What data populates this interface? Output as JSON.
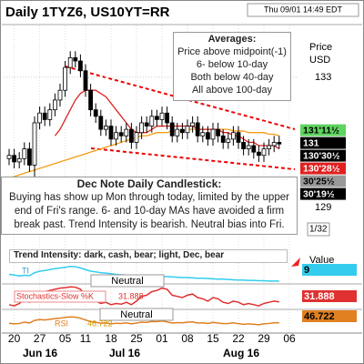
{
  "chart_data": {
    "type": "candlestick",
    "title": "Daily 1TYZ6, US10YT=RR",
    "timestamp": "Thu 09/01 14:49 EDT",
    "y_label": "Price",
    "y_unit": "USD",
    "categories": [
      null,
      "20",
      null,
      null,
      null,
      null,
      "27",
      null,
      null,
      null,
      null,
      "05",
      null,
      null,
      null,
      "11",
      null,
      null,
      null,
      null,
      "18",
      null,
      null,
      null,
      null,
      "25",
      null,
      null,
      null,
      null,
      "01",
      null,
      null,
      null,
      null,
      "08",
      null,
      null,
      null,
      null,
      "15",
      null,
      null,
      null,
      null,
      "22",
      null,
      null,
      null,
      null,
      "29",
      null,
      null,
      null,
      null,
      "06"
    ],
    "months": [
      "Jun 16",
      "Jul 16",
      "Aug 16"
    ],
    "open": [
      130.5,
      130.6,
      130.4,
      130.5,
      130.8,
      130.3,
      131.6,
      131.9,
      131.7,
      132.0,
      132.3,
      132.6,
      133.3,
      133.6,
      133.5,
      133.2,
      132.6,
      132.0,
      131.8,
      131.4,
      131.5,
      131.1,
      131.3,
      131.2,
      131.4,
      131.0,
      131.3,
      131.6,
      131.5,
      131.8,
      131.7,
      131.9,
      131.6,
      131.2,
      131.4,
      131.3,
      131.5,
      131.6,
      131.2,
      131.3,
      131.1,
      131.4,
      131.2,
      131.0,
      131.1,
      131.3,
      131.0,
      130.8,
      130.9,
      130.7,
      130.6,
      130.8,
      130.9,
      131.0,
      null,
      null
    ],
    "high": [
      130.8,
      130.8,
      130.7,
      131.0,
      131.0,
      131.8,
      132.1,
      132.1,
      132.2,
      132.5,
      132.8,
      133.5,
      133.8,
      133.8,
      133.7,
      133.4,
      132.8,
      132.2,
      132.0,
      131.7,
      131.7,
      131.5,
      131.5,
      131.6,
      131.6,
      131.5,
      131.8,
      131.8,
      132.0,
      132.0,
      132.1,
      132.1,
      131.8,
      131.6,
      131.6,
      131.7,
      131.8,
      131.8,
      131.5,
      131.5,
      131.6,
      131.6,
      131.4,
      131.3,
      131.5,
      131.5,
      131.2,
      131.1,
      131.1,
      130.9,
      131.0,
      131.1,
      131.2,
      131.2,
      null,
      null
    ],
    "low": [
      130.3,
      130.2,
      130.2,
      130.3,
      130.1,
      129.8,
      131.4,
      131.5,
      131.5,
      131.8,
      132.1,
      132.4,
      133.1,
      133.3,
      133.0,
      132.4,
      131.8,
      131.6,
      131.2,
      131.2,
      130.9,
      130.9,
      131.0,
      131.0,
      130.8,
      130.8,
      131.1,
      131.3,
      131.3,
      131.5,
      131.5,
      131.4,
      131.0,
      131.0,
      131.1,
      131.1,
      131.3,
      131.0,
      131.0,
      130.9,
      130.9,
      131.0,
      130.8,
      130.8,
      130.9,
      130.8,
      130.6,
      130.6,
      130.5,
      130.4,
      130.4,
      130.6,
      130.7,
      130.8,
      null,
      null
    ],
    "close": [
      130.6,
      130.4,
      130.5,
      130.8,
      130.3,
      131.6,
      131.9,
      131.7,
      132.0,
      132.3,
      132.6,
      133.3,
      133.6,
      133.5,
      133.2,
      132.6,
      132.0,
      131.8,
      131.4,
      131.5,
      131.1,
      131.3,
      131.2,
      131.4,
      131.0,
      131.3,
      131.6,
      131.5,
      131.8,
      131.7,
      131.9,
      131.6,
      131.2,
      131.4,
      131.3,
      131.5,
      131.6,
      131.2,
      131.3,
      131.1,
      131.4,
      131.2,
      131.0,
      131.1,
      131.3,
      131.0,
      130.8,
      130.9,
      130.7,
      130.6,
      130.8,
      130.9,
      131.0,
      130.95,
      null,
      null
    ],
    "moving_averages": [
      {
        "color": "#f39c12",
        "values": [
          129.9,
          129.95,
          130.0,
          130.05,
          130.1,
          130.15,
          130.2,
          130.25,
          130.3,
          130.35,
          130.4,
          130.45,
          130.5,
          130.55,
          130.6,
          130.65,
          130.7,
          130.75,
          130.8,
          130.85,
          130.9,
          130.95,
          131.0,
          131.05,
          131.1,
          131.15,
          131.2,
          131.2,
          131.25,
          131.3,
          131.3,
          131.3,
          131.35,
          131.35,
          131.35,
          131.4,
          131.4,
          131.4,
          131.4,
          131.4,
          131.4,
          131.4,
          131.4,
          131.4,
          131.35,
          131.35,
          131.35,
          131.3,
          131.3,
          131.3,
          131.3,
          131.25,
          131.25,
          131.2,
          null,
          null
        ]
      },
      {
        "color": "#dd2222",
        "values": [
          null,
          null,
          null,
          null,
          null,
          null,
          null,
          null,
          null,
          131.2,
          131.4,
          131.7,
          132.0,
          132.3,
          132.5,
          132.6,
          132.6,
          132.6,
          132.5,
          132.4,
          132.2,
          132.0,
          131.8,
          131.6,
          131.4,
          131.3,
          131.3,
          131.3,
          131.4,
          131.5,
          131.5,
          131.5,
          131.5,
          131.5,
          131.5,
          131.5,
          131.5,
          131.4,
          131.4,
          131.4,
          131.4,
          131.4,
          131.3,
          131.3,
          131.2,
          131.2,
          131.1,
          131.0,
          131.0,
          130.9,
          130.9,
          130.9,
          130.9,
          130.8,
          null,
          null
        ]
      }
    ],
    "ylim": [
      127.77,
      134.59
    ],
    "yticks": [
      133,
      129
    ],
    "increment_label": "1/32",
    "price_labels": [
      {
        "value": 131.359,
        "label": "131'11½",
        "color": "#5fd35f",
        "text_color": "#000"
      },
      {
        "value": 131,
        "label": "131",
        "color": "#000",
        "text_color": "#fff"
      },
      {
        "value": 130.953,
        "label": "130'30½",
        "color": "#000",
        "text_color": "#fff"
      },
      {
        "value": 130.891,
        "label": "130'28½",
        "color": "#e02020",
        "text_color": "#fff"
      },
      {
        "value": 130.797,
        "label": "30'25½",
        "color": "#999",
        "text_color": "#000"
      },
      {
        "value": 130.609,
        "label": "30'19½",
        "color": "#000",
        "text_color": "#fff"
      }
    ],
    "averages_note": {
      "title": "Averages:",
      "lines": [
        "Price above midpoint(-1)",
        "6- below 10-day",
        "Both below 40-day",
        "All above 100-day"
      ]
    },
    "commentary": {
      "title": "Dec Note Daily Candlestick:",
      "text": "Buying has show up Mon through today, limited by the upper end of Fri's range. 6- and 10-day MAs have avoided a firm break past. Trend Intensity is bearish. Neutral bias into Fri."
    },
    "trend_intensity": {
      "label": "Trend Intensity: dark, cash, bear; light, Dec, bear",
      "tag": "TI",
      "value_title": "Value",
      "color": "#33ccee",
      "ylim": [
        0,
        60
      ],
      "values": [
        30,
        28,
        25,
        27,
        26,
        35,
        40,
        42,
        45,
        48,
        50,
        52,
        55,
        54,
        50,
        45,
        40,
        38,
        35,
        34,
        32,
        30,
        29,
        28,
        27,
        26,
        26,
        25,
        25,
        24,
        24,
        23,
        22,
        21,
        20,
        20,
        19,
        18,
        18,
        17,
        16,
        15,
        15,
        14,
        13,
        12,
        12,
        11,
        11,
        10,
        10,
        9,
        9,
        9,
        null,
        null
      ]
    },
    "neutral_labels": [
      "Neutral",
      "Neutral"
    ],
    "stochastics": {
      "name": "Stochastics-Slow %K",
      "color": "#e03030",
      "ylim": [
        0,
        100
      ],
      "values": [
        20,
        15,
        25,
        40,
        30,
        60,
        70,
        75,
        80,
        85,
        90,
        92,
        95,
        94,
        85,
        60,
        40,
        35,
        25,
        30,
        20,
        25,
        22,
        30,
        20,
        35,
        55,
        60,
        75,
        80,
        90,
        85,
        60,
        55,
        50,
        60,
        65,
        50,
        45,
        35,
        50,
        45,
        30,
        25,
        35,
        30,
        20,
        25,
        20,
        15,
        25,
        30,
        35,
        31.888,
        null,
        null
      ]
    },
    "rsi": {
      "name": "RSI",
      "color": "#e08020",
      "ylim": [
        0,
        100
      ],
      "values": [
        45,
        42,
        44,
        50,
        46,
        58,
        62,
        60,
        63,
        66,
        68,
        72,
        74,
        73,
        68,
        60,
        52,
        50,
        45,
        47,
        42,
        45,
        44,
        47,
        42,
        46,
        50,
        49,
        53,
        52,
        55,
        51,
        46,
        48,
        47,
        50,
        51,
        46,
        47,
        44,
        49,
        46,
        43,
        44,
        47,
        43,
        40,
        42,
        40,
        38,
        42,
        44,
        47,
        46.722,
        null,
        null
      ]
    }
  }
}
